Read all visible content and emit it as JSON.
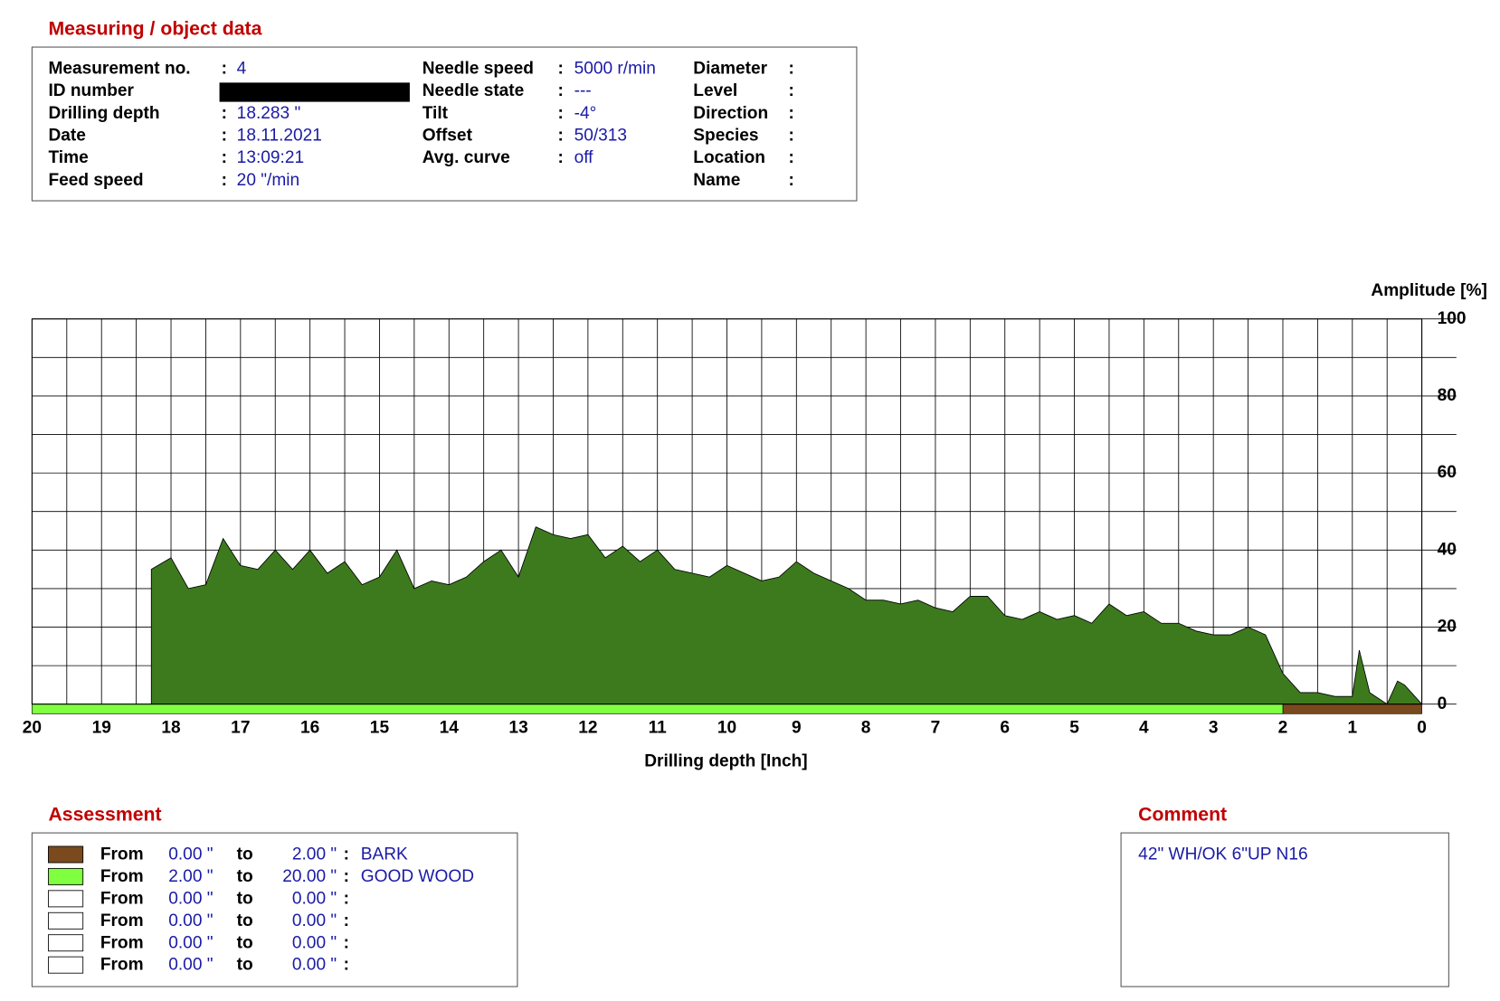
{
  "measuring": {
    "title": "Measuring / object data",
    "separator": ":",
    "columns": [
      [
        {
          "label": "Measurement no.",
          "value": "4"
        },
        {
          "label": "ID number"
        },
        {
          "label": "Drilling depth",
          "value": "18.283 \""
        },
        {
          "label": "Date",
          "value": "18.11.2021"
        },
        {
          "label": "Time",
          "value": "13:09:21"
        },
        {
          "label": "Feed speed",
          "value": "20 \"/min"
        }
      ],
      [
        {
          "label": "Needle speed",
          "value": "5000 r/min"
        },
        {
          "label": "Needle state",
          "value": "---"
        },
        {
          "label": "Tilt",
          "value": "-4°"
        },
        {
          "label": "Offset",
          "value": "50/313"
        },
        {
          "label": "Avg. curve",
          "value": "off"
        }
      ],
      [
        {
          "label": "Diameter"
        },
        {
          "label": "Level"
        },
        {
          "label": "Direction"
        },
        {
          "label": "Species"
        },
        {
          "label": "Location"
        },
        {
          "label": "Name"
        }
      ]
    ]
  },
  "chart_data": {
    "type": "area",
    "y_label": "Amplitude [%]",
    "x_label": "Drilling depth [Inch]",
    "color": "#3d7a1e",
    "xlim": [
      20,
      0
    ],
    "ylim": [
      0,
      100
    ],
    "xticks": [
      20,
      19,
      18,
      17,
      16,
      15,
      14,
      13,
      12,
      11,
      10,
      9,
      8,
      7,
      6,
      5,
      4,
      3,
      2,
      1,
      0
    ],
    "yticks": [
      0,
      20,
      40,
      60,
      80,
      100
    ],
    "grid": true,
    "x": [
      18.283,
      18.0,
      17.75,
      17.5,
      17.25,
      17.0,
      16.75,
      16.5,
      16.25,
      16.0,
      15.75,
      15.5,
      15.25,
      15.0,
      14.75,
      14.5,
      14.25,
      14.0,
      13.75,
      13.5,
      13.25,
      13.0,
      12.75,
      12.5,
      12.25,
      12.0,
      11.75,
      11.5,
      11.25,
      11.0,
      10.75,
      10.5,
      10.25,
      10.0,
      9.75,
      9.5,
      9.25,
      9.0,
      8.75,
      8.5,
      8.25,
      8.0,
      7.75,
      7.5,
      7.25,
      7.0,
      6.75,
      6.5,
      6.25,
      6.0,
      5.75,
      5.5,
      5.25,
      5.0,
      4.75,
      4.5,
      4.25,
      4.0,
      3.75,
      3.5,
      3.25,
      3.0,
      2.75,
      2.5,
      2.25,
      2.0,
      1.75,
      1.5,
      1.25,
      1.0,
      0.9,
      0.75,
      0.5,
      0.35,
      0.25,
      0.0
    ],
    "values": [
      35,
      38,
      30,
      31,
      43,
      36,
      35,
      40,
      35,
      40,
      34,
      37,
      31,
      33,
      40,
      30,
      32,
      31,
      33,
      37,
      40,
      33,
      46,
      44,
      43,
      44,
      38,
      41,
      37,
      40,
      35,
      34,
      33,
      36,
      34,
      32,
      33,
      37,
      34,
      32,
      30,
      27,
      27,
      26,
      27,
      25,
      24,
      28,
      28,
      23,
      22,
      24,
      22,
      23,
      21,
      26,
      23,
      24,
      21,
      21,
      19,
      18,
      18,
      20,
      18,
      8,
      3,
      3,
      2,
      2,
      14,
      3,
      0,
      6,
      5,
      0
    ],
    "bands": [
      {
        "from": 0,
        "to": 2,
        "color": "#7a4a1e"
      },
      {
        "from": 2,
        "to": 20,
        "color": "#80ff40"
      }
    ]
  },
  "assessment": {
    "title": "Assessment",
    "from_word": "From",
    "to_word": "to",
    "separator": ":",
    "rows": [
      {
        "color": "#7a4a1e",
        "from": "0.00 \"",
        "to": "2.00 \"",
        "label": "BARK"
      },
      {
        "color": "#80ff40",
        "from": "2.00 \"",
        "to": "20.00 \"",
        "label": "GOOD WOOD"
      },
      {
        "color": "#ffffff",
        "from": "0.00 \"",
        "to": "0.00 \""
      },
      {
        "color": "#ffffff",
        "from": "0.00 \"",
        "to": "0.00 \""
      },
      {
        "color": "#ffffff",
        "from": "0.00 \"",
        "to": "0.00 \""
      },
      {
        "color": "#ffffff",
        "from": "0.00 \"",
        "to": "0.00 \""
      }
    ]
  },
  "comment": {
    "title": "Comment",
    "text": "42\" WH/OK 6\"UP N16"
  }
}
